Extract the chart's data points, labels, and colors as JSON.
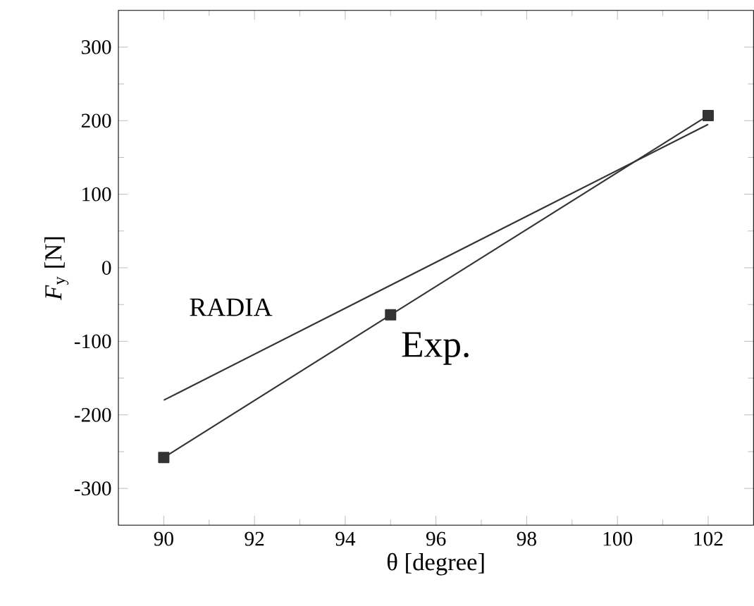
{
  "chart_data": {
    "type": "line",
    "xlabel": "θ [degree]",
    "ylabel": "*F*$_{y}$ [N]",
    "xlim": [
      89,
      103
    ],
    "xticks": [
      90,
      92,
      94,
      96,
      98,
      100,
      102
    ],
    "ylim": [
      -350,
      350
    ],
    "yticks": [
      -300,
      -200,
      -100,
      0,
      100,
      200,
      300
    ],
    "series": [
      {
        "name": "Exp.",
        "color": "#333333",
        "x": [
          90,
          95,
          102
        ],
        "values": [
          -258,
          -64,
          207
        ],
        "marker": "square"
      },
      {
        "name": "RADIA",
        "color": "#333333",
        "x": [
          90,
          102
        ],
        "values": [
          -180,
          195
        ],
        "marker": "none"
      }
    ]
  }
}
